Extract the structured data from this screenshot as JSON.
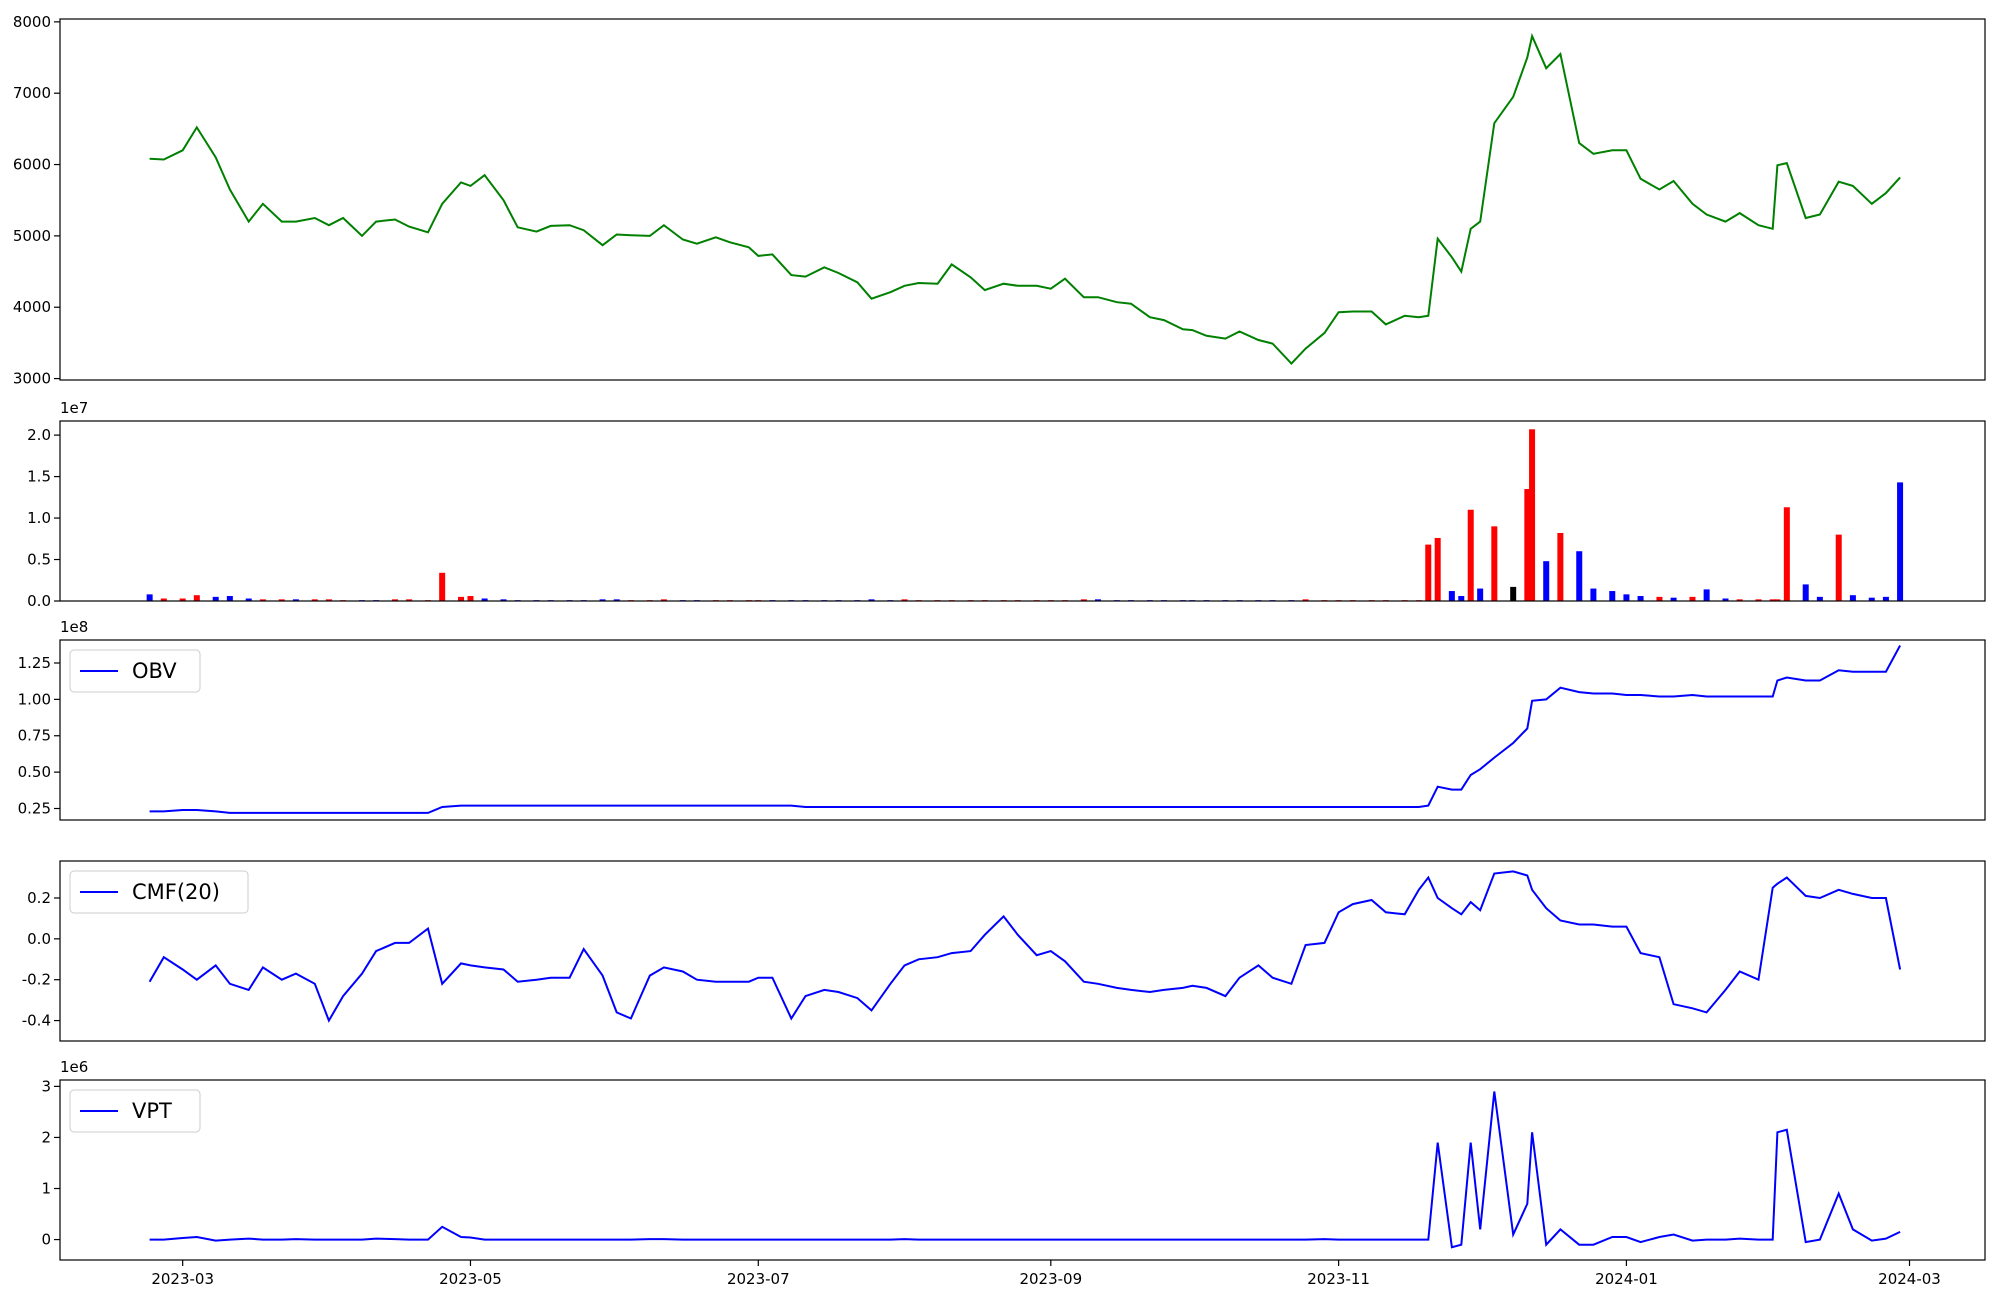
{
  "chart_data": {
    "type": "stacked-panels",
    "x": [
      "2023-02-22",
      "2023-02-25",
      "2023-03-01",
      "2023-03-04",
      "2023-03-08",
      "2023-03-11",
      "2023-03-15",
      "2023-03-18",
      "2023-03-22",
      "2023-03-25",
      "2023-03-29",
      "2023-04-01",
      "2023-04-04",
      "2023-04-08",
      "2023-04-11",
      "2023-04-15",
      "2023-04-18",
      "2023-04-22",
      "2023-04-25",
      "2023-04-29",
      "2023-05-01",
      "2023-05-04",
      "2023-05-08",
      "2023-05-11",
      "2023-05-15",
      "2023-05-18",
      "2023-05-22",
      "2023-05-25",
      "2023-05-29",
      "2023-06-01",
      "2023-06-04",
      "2023-06-08",
      "2023-06-11",
      "2023-06-15",
      "2023-06-18",
      "2023-06-22",
      "2023-06-25",
      "2023-06-29",
      "2023-07-01",
      "2023-07-04",
      "2023-07-08",
      "2023-07-11",
      "2023-07-15",
      "2023-07-18",
      "2023-07-22",
      "2023-07-25",
      "2023-07-29",
      "2023-08-01",
      "2023-08-04",
      "2023-08-08",
      "2023-08-11",
      "2023-08-15",
      "2023-08-18",
      "2023-08-22",
      "2023-08-25",
      "2023-08-29",
      "2023-09-01",
      "2023-09-04",
      "2023-09-08",
      "2023-09-11",
      "2023-09-15",
      "2023-09-18",
      "2023-09-22",
      "2023-09-25",
      "2023-09-29",
      "2023-10-01",
      "2023-10-04",
      "2023-10-08",
      "2023-10-11",
      "2023-10-15",
      "2023-10-18",
      "2023-10-22",
      "2023-10-25",
      "2023-10-29",
      "2023-11-01",
      "2023-11-04",
      "2023-11-08",
      "2023-11-11",
      "2023-11-15",
      "2023-11-18",
      "2023-11-20",
      "2023-11-22",
      "2023-11-25",
      "2023-11-27",
      "2023-11-29",
      "2023-12-01",
      "2023-12-04",
      "2023-12-08",
      "2023-12-11",
      "2023-12-12",
      "2023-12-15",
      "2023-12-18",
      "2023-12-22",
      "2023-12-25",
      "2023-12-29",
      "2024-01-01",
      "2024-01-04",
      "2024-01-08",
      "2024-01-11",
      "2024-01-15",
      "2024-01-18",
      "2024-01-22",
      "2024-01-25",
      "2024-01-29",
      "2024-02-01",
      "2024-02-02",
      "2024-02-04",
      "2024-02-08",
      "2024-02-11",
      "2024-02-15",
      "2024-02-18",
      "2024-02-22",
      "2024-02-25",
      "2024-02-28"
    ],
    "xlim": [
      "2023-02-03",
      "2024-03-17"
    ],
    "xticks": [
      "2023-03",
      "2023-05",
      "2023-07",
      "2023-09",
      "2023-11",
      "2024-01",
      "2024-03"
    ],
    "panels": [
      {
        "type": "line",
        "ylim": [
          2980,
          8040
        ],
        "yticks": [
          3000,
          4000,
          5000,
          6000,
          7000,
          8000
        ],
        "series": [
          {
            "color": "#008000",
            "values": [
              6080,
              6070,
              6200,
              6520,
              6100,
              5650,
              5200,
              5450,
              5200,
              5200,
              5250,
              5150,
              5250,
              5000,
              5200,
              5230,
              5130,
              5050,
              5450,
              5750,
              5700,
              5850,
              5500,
              5120,
              5060,
              5140,
              5150,
              5080,
              4870,
              5020,
              5010,
              5000,
              5150,
              4950,
              4890,
              4980,
              4910,
              4840,
              4720,
              4740,
              4450,
              4430,
              4560,
              4480,
              4350,
              4120,
              4210,
              4300,
              4340,
              4330,
              4600,
              4420,
              4240,
              4330,
              4300,
              4300,
              4260,
              4400,
              4140,
              4140,
              4070,
              4050,
              3860,
              3820,
              3690,
              3680,
              3600,
              3560,
              3660,
              3540,
              3490,
              3210,
              3420,
              3640,
              3930,
              3940,
              3940,
              3760,
              3880,
              3860,
              3880,
              4960,
              4700,
              4500,
              5100,
              5200,
              6580,
              6950,
              7500,
              7800,
              7350,
              7550,
              6300,
              6150,
              6200,
              6200,
              5800,
              5650,
              5770,
              5450,
              5300,
              5200,
              5320,
              5150,
              5100,
              5990,
              6020,
              5250,
              5300,
              5760,
              5700,
              5450,
              5600,
              5820
            ]
          }
        ]
      },
      {
        "type": "bar",
        "offset_label": "1e7",
        "ylim": [
          0,
          2.17
        ],
        "yticks": [
          {
            "value": 0,
            "label": "0.0"
          },
          0.5,
          {
            "value": 1,
            "label": "1.0"
          },
          1.5,
          {
            "value": 2,
            "label": "2.0"
          }
        ],
        "values": [
          0.08,
          0.03,
          0.03,
          0.07,
          0.05,
          0.06,
          0.03,
          0.02,
          0.02,
          0.02,
          0.02,
          0.02,
          0.01,
          0.01,
          0.01,
          0.02,
          0.02,
          0.01,
          0.34,
          0.05,
          0.06,
          0.03,
          0.02,
          0.01,
          0.01,
          0.01,
          0.01,
          0.01,
          0.02,
          0.02,
          0.01,
          0.01,
          0.02,
          0.01,
          0.01,
          0.01,
          0.01,
          0.01,
          0.01,
          0.01,
          0.01,
          0.01,
          0.01,
          0.01,
          0.01,
          0.02,
          0.01,
          0.02,
          0.01,
          0.01,
          0.01,
          0.01,
          0.01,
          0.01,
          0.01,
          0.01,
          0.01,
          0.01,
          0.02,
          0.02,
          0.01,
          0.01,
          0.01,
          0.01,
          0.01,
          0.01,
          0.01,
          0.01,
          0.01,
          0.01,
          0.01,
          0.01,
          0.02,
          0.01,
          0.01,
          0.01,
          0.01,
          0.01,
          0.01,
          0.01,
          0.68,
          0.76,
          0.12,
          0.06,
          1.1,
          0.15,
          0.9,
          0.17,
          1.35,
          2.07,
          0.48,
          0.82,
          0.6,
          0.15,
          0.12,
          0.08,
          0.06,
          0.05,
          0.04,
          0.05,
          0.14,
          0.03,
          0.02,
          0.02,
          0.02,
          0.02,
          1.13,
          0.2,
          0.05,
          0.8,
          0.07,
          0.04,
          0.05,
          1.43
        ],
        "colors": [
          "#0000ff",
          "#ff0000",
          "#ff0000",
          "#ff0000",
          "#0000ff",
          "#0000ff",
          "#0000ff",
          "#ff0000",
          "#ff0000",
          "#0000ff",
          "#ff0000",
          "#ff0000",
          "#ff0000",
          "#0000ff",
          "#0000ff",
          "#ff0000",
          "#ff0000",
          "#ff0000",
          "#ff0000",
          "#ff0000",
          "#ff0000",
          "#0000ff",
          "#0000ff",
          "#0000ff",
          "#0000ff",
          "#0000ff",
          "#0000ff",
          "#0000ff",
          "#0000ff",
          "#0000ff",
          "#ff0000",
          "#ff0000",
          "#ff0000",
          "#0000ff",
          "#0000ff",
          "#ff0000",
          "#ff0000",
          "#ff0000",
          "#ff0000",
          "#0000ff",
          "#0000ff",
          "#0000ff",
          "#0000ff",
          "#0000ff",
          "#0000ff",
          "#0000ff",
          "#0000ff",
          "#ff0000",
          "#ff0000",
          "#ff0000",
          "#ff0000",
          "#ff0000",
          "#ff0000",
          "#ff0000",
          "#ff0000",
          "#ff0000",
          "#ff0000",
          "#ff0000",
          "#ff0000",
          "#0000ff",
          "#0000ff",
          "#0000ff",
          "#0000ff",
          "#0000ff",
          "#0000ff",
          "#0000ff",
          "#0000ff",
          "#0000ff",
          "#0000ff",
          "#0000ff",
          "#0000ff",
          "#0000ff",
          "#ff0000",
          "#ff0000",
          "#ff0000",
          "#ff0000",
          "#ff0000",
          "#ff0000",
          "#ff0000",
          "#ff0000",
          "#ff0000",
          "#ff0000",
          "#0000ff",
          "#0000ff",
          "#ff0000",
          "#0000ff",
          "#ff0000",
          "#000000",
          "#ff0000",
          "#ff0000",
          "#0000ff",
          "#ff0000",
          "#0000ff",
          "#0000ff",
          "#0000ff",
          "#0000ff",
          "#0000ff",
          "#ff0000",
          "#0000ff",
          "#ff0000",
          "#0000ff",
          "#0000ff",
          "#ff0000",
          "#ff0000",
          "#ff0000",
          "#ff0000",
          "#ff0000",
          "#0000ff",
          "#0000ff",
          "#ff0000",
          "#0000ff",
          "#0000ff",
          "#0000ff",
          "#0000ff"
        ]
      },
      {
        "type": "line",
        "offset_label": "1e8",
        "ylim": [
          0.171,
          1.408
        ],
        "yticks": [
          0.25,
          {
            "value": 0.5,
            "label": "0.50"
          },
          0.75,
          {
            "value": 1,
            "label": "1.00"
          },
          1.25
        ],
        "series": [
          {
            "name": "OBV",
            "color": "#0000ff",
            "values": [
              0.23,
              0.23,
              0.24,
              0.24,
              0.23,
              0.22,
              0.22,
              0.22,
              0.22,
              0.22,
              0.22,
              0.22,
              0.22,
              0.22,
              0.22,
              0.22,
              0.22,
              0.22,
              0.26,
              0.27,
              0.27,
              0.27,
              0.27,
              0.27,
              0.27,
              0.27,
              0.27,
              0.27,
              0.27,
              0.27,
              0.27,
              0.27,
              0.27,
              0.27,
              0.27,
              0.27,
              0.27,
              0.27,
              0.27,
              0.27,
              0.27,
              0.26,
              0.26,
              0.26,
              0.26,
              0.26,
              0.26,
              0.26,
              0.26,
              0.26,
              0.26,
              0.26,
              0.26,
              0.26,
              0.26,
              0.26,
              0.26,
              0.26,
              0.26,
              0.26,
              0.26,
              0.26,
              0.26,
              0.26,
              0.26,
              0.26,
              0.26,
              0.26,
              0.26,
              0.26,
              0.26,
              0.26,
              0.26,
              0.26,
              0.26,
              0.26,
              0.26,
              0.26,
              0.26,
              0.26,
              0.27,
              0.4,
              0.38,
              0.38,
              0.48,
              0.52,
              0.6,
              0.7,
              0.8,
              0.99,
              1.0,
              1.08,
              1.05,
              1.04,
              1.04,
              1.03,
              1.03,
              1.02,
              1.02,
              1.03,
              1.02,
              1.02,
              1.02,
              1.02,
              1.02,
              1.13,
              1.15,
              1.13,
              1.13,
              1.2,
              1.19,
              1.19,
              1.19,
              1.37
            ]
          }
        ]
      },
      {
        "type": "line",
        "ylim": [
          -0.5,
          0.381
        ],
        "yticks": [
          -0.4,
          -0.2,
          {
            "value": 0,
            "label": "0.0"
          },
          0.2
        ],
        "series": [
          {
            "name": "CMF(20)",
            "color": "#0000ff",
            "values": [
              -0.21,
              -0.09,
              -0.15,
              -0.2,
              -0.13,
              -0.22,
              -0.25,
              -0.14,
              -0.2,
              -0.17,
              -0.22,
              -0.4,
              -0.28,
              -0.17,
              -0.06,
              -0.02,
              -0.02,
              0.05,
              -0.22,
              -0.12,
              -0.13,
              -0.14,
              -0.15,
              -0.21,
              -0.2,
              -0.19,
              -0.19,
              -0.05,
              -0.18,
              -0.36,
              -0.39,
              -0.18,
              -0.14,
              -0.16,
              -0.2,
              -0.21,
              -0.21,
              -0.21,
              -0.19,
              -0.19,
              -0.39,
              -0.28,
              -0.25,
              -0.26,
              -0.29,
              -0.35,
              -0.22,
              -0.13,
              -0.1,
              -0.09,
              -0.07,
              -0.06,
              0.02,
              0.11,
              0.02,
              -0.08,
              -0.06,
              -0.11,
              -0.21,
              -0.22,
              -0.24,
              -0.25,
              -0.26,
              -0.25,
              -0.24,
              -0.23,
              -0.24,
              -0.28,
              -0.19,
              -0.13,
              -0.19,
              -0.22,
              -0.03,
              -0.02,
              0.13,
              0.17,
              0.19,
              0.13,
              0.12,
              0.24,
              0.3,
              0.2,
              0.15,
              0.12,
              0.18,
              0.14,
              0.32,
              0.33,
              0.31,
              0.24,
              0.15,
              0.09,
              0.07,
              0.07,
              0.06,
              0.06,
              -0.07,
              -0.09,
              -0.32,
              -0.34,
              -0.36,
              -0.25,
              -0.16,
              -0.2,
              0.25,
              0.27,
              0.3,
              0.21,
              0.2,
              0.24,
              0.22,
              0.2,
              0.2,
              -0.15
            ]
          }
        ]
      },
      {
        "type": "line",
        "offset_label": "1e6",
        "ylim": [
          -0.4,
          3.125
        ],
        "yticks": [
          0,
          1,
          2,
          3
        ],
        "series": [
          {
            "name": "VPT",
            "color": "#0000ff",
            "values": [
              0,
              0,
              0.03,
              0.05,
              -0.02,
              0,
              0.02,
              0,
              0,
              0.01,
              0,
              0,
              0,
              0,
              0.02,
              0.01,
              0,
              0,
              0.25,
              0.05,
              0.04,
              0,
              0,
              0,
              0,
              0,
              0,
              0,
              0,
              0,
              0,
              0.01,
              0.01,
              0,
              0,
              0,
              0,
              0,
              0,
              0,
              0,
              0,
              0,
              0,
              0,
              0,
              0,
              0.01,
              0,
              0,
              0,
              0,
              0,
              0,
              0,
              0,
              0,
              0,
              0,
              0,
              0,
              0,
              0,
              0,
              0,
              0,
              0,
              0,
              0,
              0,
              0,
              0,
              0,
              0.01,
              0,
              0,
              0,
              0,
              0,
              0,
              0,
              1.9,
              -0.15,
              -0.1,
              1.9,
              0.2,
              2.9,
              0.1,
              0.7,
              2.1,
              -0.1,
              0.2,
              -0.1,
              -0.1,
              0.05,
              0.05,
              -0.05,
              0.05,
              0.1,
              -0.02,
              0,
              0,
              0.02,
              0,
              0,
              2.1,
              2.15,
              -0.05,
              0,
              0.9,
              0.2,
              -0.02,
              0.02,
              0.15
            ]
          }
        ]
      }
    ]
  }
}
